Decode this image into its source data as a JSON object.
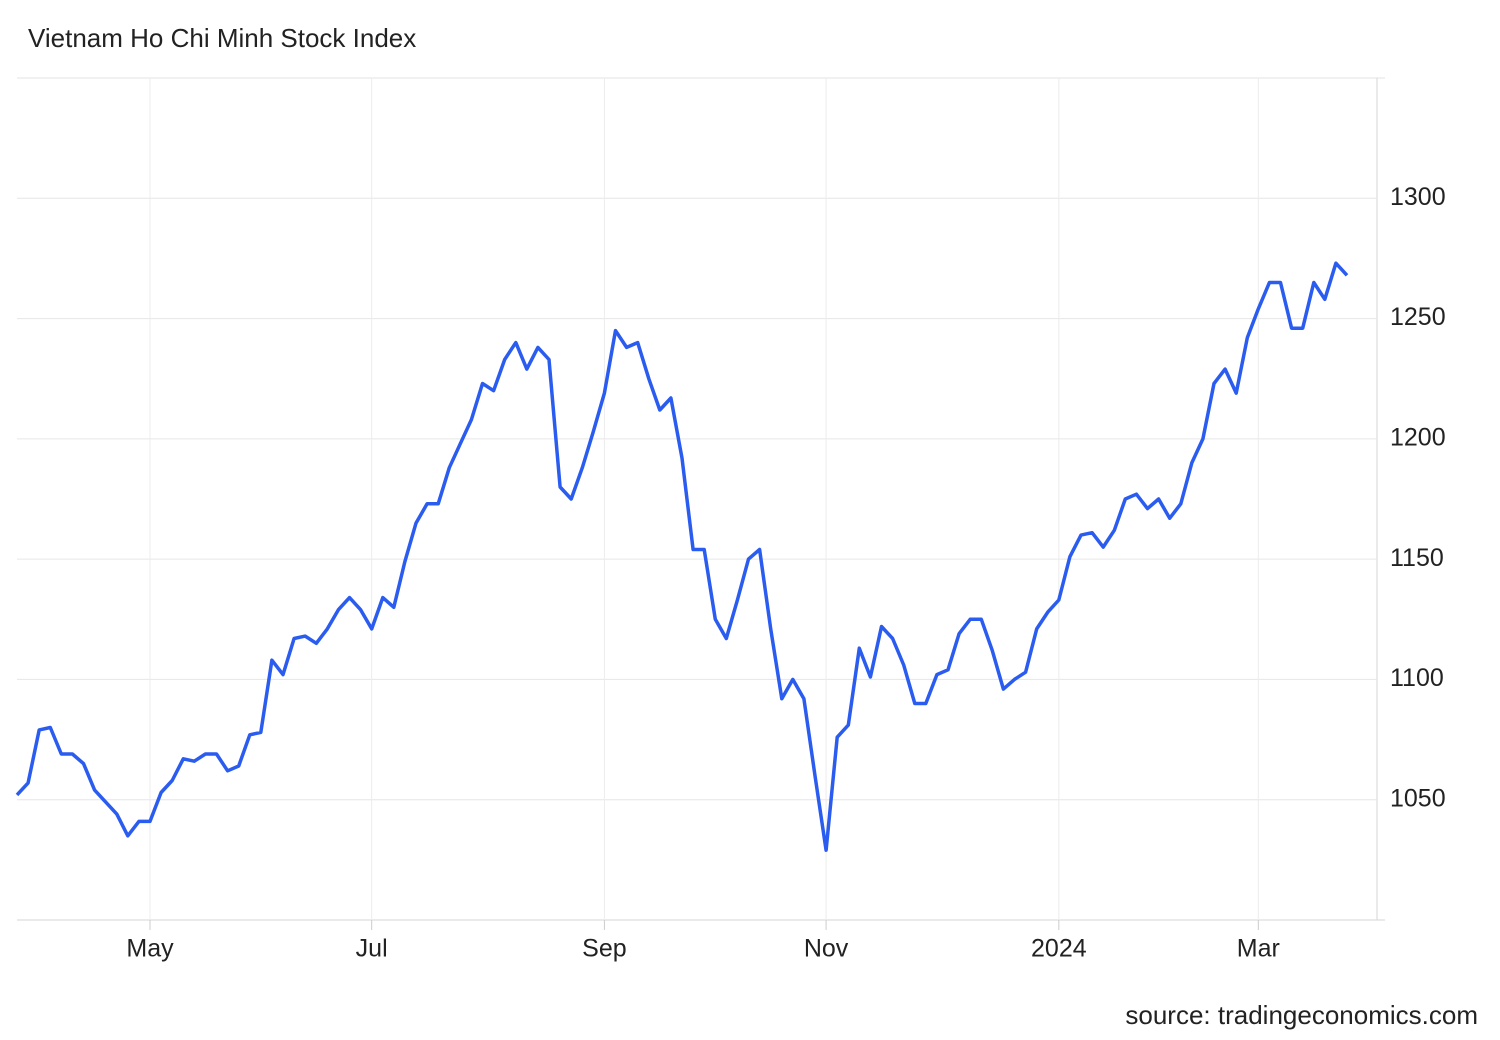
{
  "chart_data": {
    "type": "line",
    "title": "Vietnam Ho Chi Minh Stock Index",
    "source": "source: tradingeconomics.com",
    "categories": [
      null,
      null,
      null,
      null,
      null,
      null,
      null,
      null,
      null,
      null,
      null,
      null,
      "May",
      null,
      null,
      null,
      null,
      null,
      null,
      null,
      null,
      null,
      null,
      null,
      null,
      null,
      null,
      null,
      null,
      null,
      null,
      null,
      "Jul",
      null,
      null,
      null,
      null,
      null,
      null,
      null,
      null,
      null,
      null,
      null,
      null,
      null,
      null,
      null,
      null,
      null,
      null,
      null,
      null,
      "Sep",
      null,
      null,
      null,
      null,
      null,
      null,
      null,
      null,
      null,
      null,
      null,
      null,
      null,
      null,
      null,
      null,
      null,
      null,
      null,
      "Nov",
      null,
      null,
      null,
      null,
      null,
      null,
      null,
      null,
      null,
      null,
      null,
      null,
      null,
      null,
      null,
      null,
      null,
      null,
      null,
      null,
      "2024",
      null,
      null,
      null,
      null,
      null,
      null,
      null,
      null,
      null,
      null,
      null,
      null,
      null,
      null,
      null,
      null,
      null,
      "Mar",
      null,
      null,
      null,
      null,
      null,
      null,
      null,
      null
    ],
    "series": [
      {
        "color": "#2b5cf0",
        "values": [
          1052,
          1057,
          1079,
          1080,
          1069,
          1069,
          1065,
          1054,
          1049,
          1044,
          1035,
          1041,
          1041,
          1053,
          1058,
          1067,
          1066,
          1069,
          1069,
          1062,
          1064,
          1077,
          1078,
          1108,
          1102,
          1117,
          1118,
          1115,
          1121,
          1129,
          1134,
          1129,
          1121,
          1134,
          1130,
          1149,
          1165,
          1173,
          1173,
          1188,
          1198,
          1208,
          1223,
          1220,
          1233,
          1240,
          1229,
          1238,
          1233,
          1180,
          1175,
          1188,
          1203,
          1219,
          1245,
          1238,
          1240,
          1225,
          1212,
          1217,
          1192,
          1154,
          1154,
          1125,
          1117,
          1133,
          1150,
          1154,
          1121,
          1092,
          1100,
          1092,
          1060,
          1029,
          1076,
          1081,
          1113,
          1101,
          1122,
          1117,
          1106,
          1090,
          1090,
          1102,
          1104,
          1119,
          1125,
          1125,
          1112,
          1096,
          1100,
          1103,
          1121,
          1128,
          1133,
          1151,
          1160,
          1161,
          1155,
          1162,
          1175,
          1177,
          1171,
          1175,
          1167,
          1173,
          1190,
          1200,
          1223,
          1229,
          1219,
          1242,
          1254,
          1265,
          1265,
          1246,
          1246,
          1265,
          1258,
          1273,
          1268
        ]
      }
    ],
    "ylim": [
      1000,
      1350
    ],
    "yticks": [
      1050,
      1100,
      1150,
      1200,
      1250,
      1300
    ],
    "grid": true
  }
}
